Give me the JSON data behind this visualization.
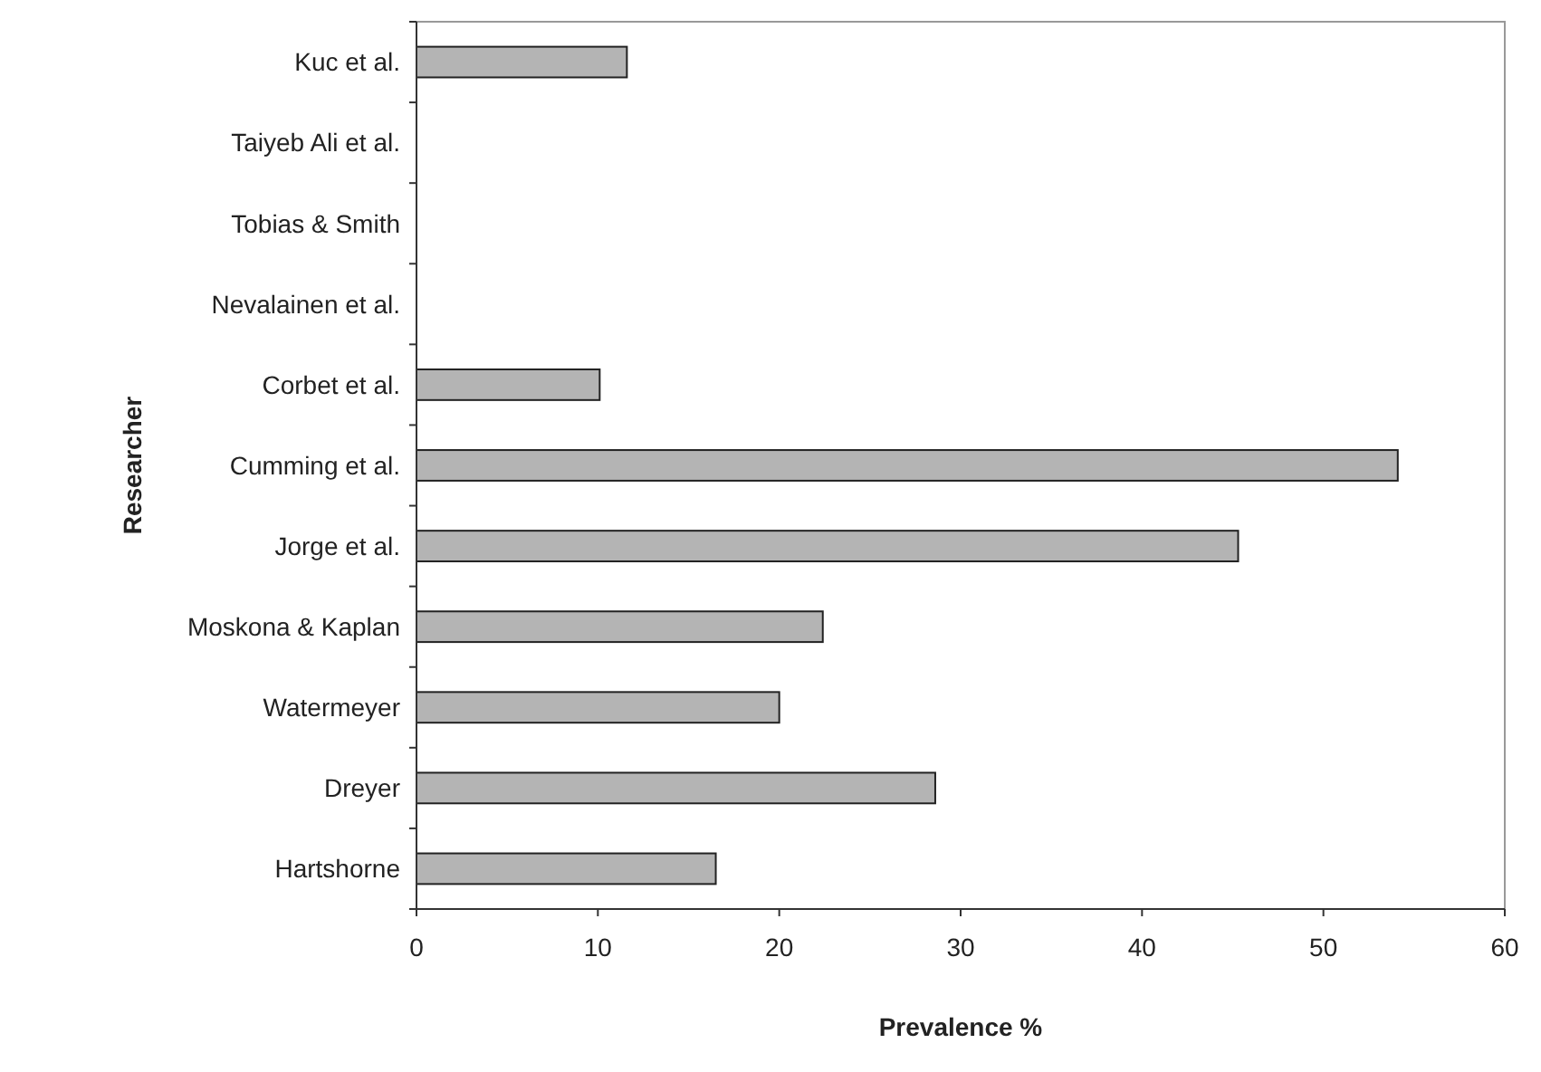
{
  "chart_data": {
    "type": "bar",
    "orientation": "horizontal",
    "xlabel": "Prevalence %",
    "ylabel": "Researcher",
    "categories": [
      "Kuc et al.",
      "Taiyeb Ali et al.",
      "Tobias & Smith",
      "Nevalainen et al.",
      "Corbet et al.",
      "Cumming et al.",
      "Jorge et al.",
      "Moskona & Kaplan",
      "Watermeyer",
      "Dreyer",
      "Hartshorne"
    ],
    "values": [
      11.6,
      0,
      0,
      0,
      10.1,
      54.1,
      45.3,
      22.4,
      20,
      28.6,
      16.5
    ],
    "color": "#b4b4b4",
    "xlim": [
      0,
      60
    ],
    "xticks": [
      0,
      10,
      20,
      30,
      40,
      50,
      60
    ],
    "grid": false
  }
}
